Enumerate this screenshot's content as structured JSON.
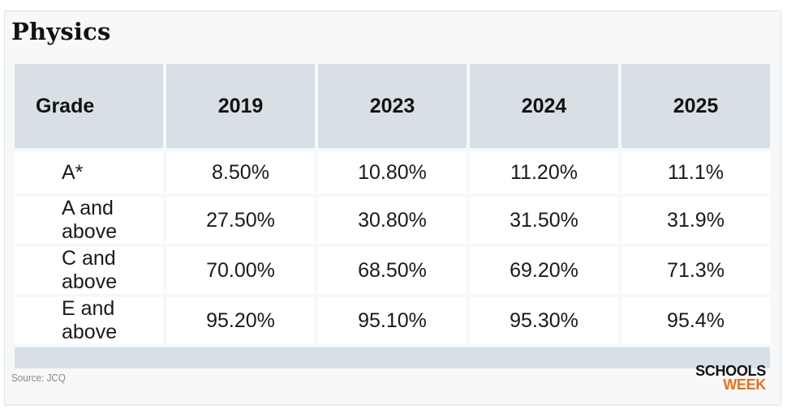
{
  "title": "Physics",
  "chart_data": {
    "type": "table",
    "title": "Physics",
    "columns": [
      "Grade",
      "2019",
      "2023",
      "2024",
      "2025"
    ],
    "rows": [
      [
        "A*",
        "8.50%",
        "10.80%",
        "11.20%",
        "11.1%"
      ],
      [
        "A and above",
        "27.50%",
        "30.80%",
        "31.50%",
        "31.9%"
      ],
      [
        "C and above",
        "70.00%",
        "68.50%",
        "69.20%",
        "71.3%"
      ],
      [
        "E and above",
        "95.20%",
        "95.10%",
        "95.30%",
        "95.4%"
      ]
    ]
  },
  "footer": {
    "source": "Source: JCQ",
    "logo_line1": "SCHOOLS",
    "logo_line2": "WEEK"
  },
  "colors": {
    "header_bg": "#d7e0e5",
    "card_bg": "#f7f8fa",
    "logo_accent": "#e8711c"
  }
}
